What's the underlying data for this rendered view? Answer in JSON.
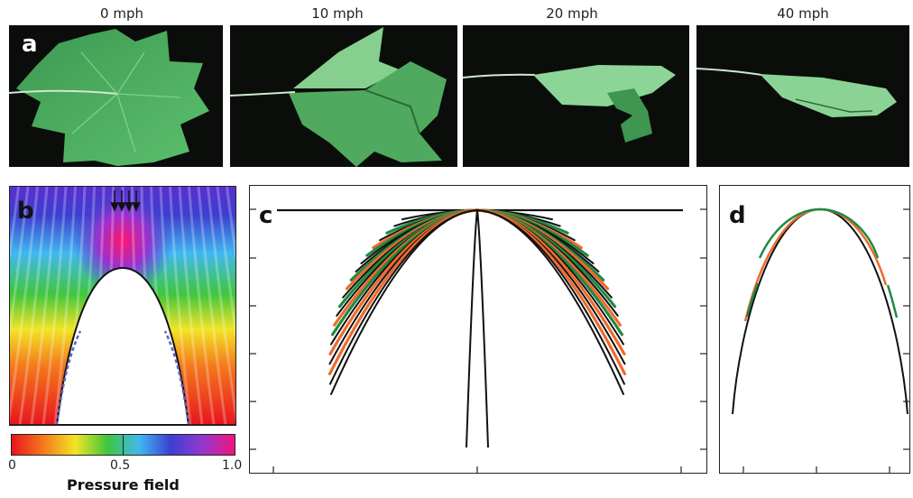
{
  "panel_a": {
    "label": "a",
    "speeds": [
      "0 mph",
      "10 mph",
      "20 mph",
      "40 mph"
    ]
  },
  "panel_b": {
    "label": "b",
    "colorbar": {
      "tick_min": "0",
      "tick_mid": "0.5",
      "tick_max": "1.0",
      "title": "Pressure field",
      "stops": [
        "#e8141e",
        "#f47a1c",
        "#f2e426",
        "#3fc63e",
        "#41b8f0",
        "#3c3fd0",
        "#9438cf",
        "#f2137c"
      ]
    }
  },
  "panel_c": {
    "label": "c"
  },
  "panel_d": {
    "label": "d"
  },
  "colors": {
    "leaf": "#4fae63",
    "line_black": "#111111",
    "line_green": "#1f8a43",
    "line_orange": "#ef6a2c"
  }
}
